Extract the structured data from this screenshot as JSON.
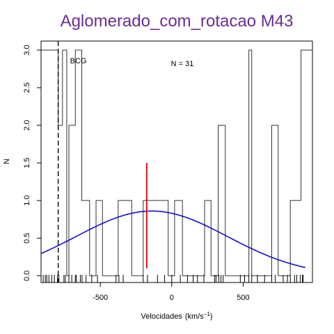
{
  "chart_data": {
    "type": "histogram",
    "title": "Aglomerado_com_rotacao M43",
    "xlabel": "Velocidades",
    "xlabel_unit_base": "(km/s",
    "xlabel_unit_exp": "−1",
    "xlabel_unit_close": ")",
    "ylabel": "N",
    "xlim": [
      -915,
      985
    ],
    "ylim": [
      -0.09,
      3.12
    ],
    "xticks": [
      -500,
      0,
      500
    ],
    "xtick_labels": [
      "-500",
      "0",
      "500"
    ],
    "yticks": [
      0.0,
      0.5,
      1.0,
      1.5,
      2.0,
      2.5,
      3.0
    ],
    "ytick_labels": [
      "0.0",
      "0.5",
      "1.0",
      "1.5",
      "2.0",
      "2.5",
      "3.0"
    ],
    "histogram_steps": [
      [
        -915,
        3
      ],
      [
        -795,
        2
      ],
      [
        -765,
        3
      ],
      [
        -735,
        0
      ],
      [
        -720,
        2
      ],
      [
        -675,
        3
      ],
      [
        -630,
        1
      ],
      [
        -575,
        0
      ],
      [
        -530,
        1
      ],
      [
        -485,
        0
      ],
      [
        -375,
        1
      ],
      [
        -280,
        0
      ],
      [
        -200,
        1
      ],
      [
        -25,
        0
      ],
      [
        20,
        1
      ],
      [
        75,
        0
      ],
      [
        230,
        1
      ],
      [
        275,
        0
      ],
      [
        325,
        2
      ],
      [
        375,
        0
      ],
      [
        540,
        3
      ],
      [
        560,
        0
      ],
      [
        700,
        2
      ],
      [
        745,
        0
      ],
      [
        830,
        1
      ],
      [
        905,
        3
      ],
      [
        985,
        3
      ]
    ],
    "gaussian_curve": {
      "color": "#1010cc",
      "mean": -140,
      "sd": 530,
      "peak": 0.86,
      "x_range": [
        -915,
        935
      ]
    },
    "mean_marker": {
      "x": -175,
      "y_range": [
        0.1,
        1.5
      ],
      "color": "#dd1111"
    },
    "bcg_marker": {
      "x": -795,
      "label": "BCG",
      "style": "dashed"
    },
    "rug_x": [
      -900,
      -885,
      -875,
      -860,
      -840,
      -822,
      -800,
      -790,
      -755,
      -745,
      -720,
      -700,
      -675,
      -668,
      -640,
      -628,
      -600,
      -560,
      -520,
      -390,
      -370,
      -340,
      -200,
      -170,
      -100,
      -50,
      0,
      60,
      110,
      150,
      180,
      225,
      300,
      310,
      330,
      345,
      360,
      480,
      510,
      540,
      560,
      600,
      650,
      700,
      725,
      780,
      810,
      830,
      860,
      875,
      900,
      915,
      920
    ],
    "annotation": "N =  31",
    "title_color": "#6b2c91",
    "grid": false
  }
}
